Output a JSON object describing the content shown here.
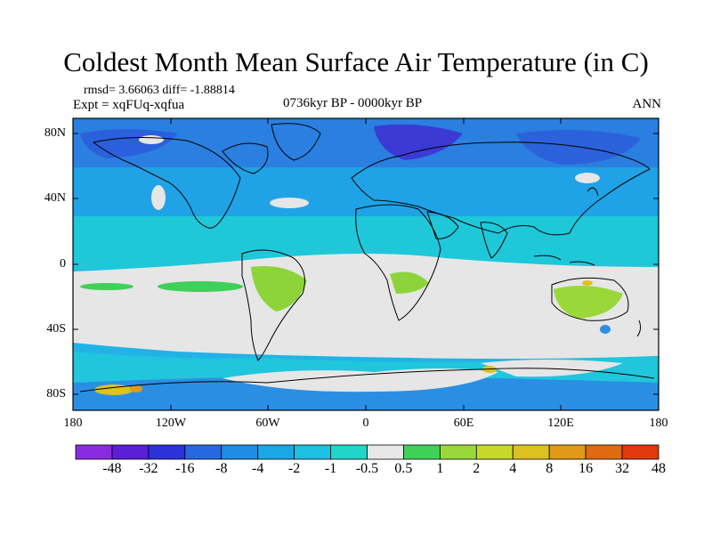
{
  "title": "Coldest Month Mean Surface Air Temperature (in C)",
  "stats": "rmsd= 3.66063 diff= -1.88814",
  "experiment": "Expt = xqFUq-xqfua",
  "period": "0736kyr BP - 0000kyr BP",
  "season": "ANN",
  "y_axis_labels": [
    "80N",
    "40N",
    "0",
    "40S",
    "80S"
  ],
  "x_axis_labels": [
    "180",
    "120W",
    "60W",
    "0",
    "60E",
    "120E",
    "180"
  ],
  "colorbar": {
    "labels": [
      "-48",
      "-32",
      "-16",
      "-8",
      "-4",
      "-2",
      "-1",
      "-0.5",
      "0.5",
      "1",
      "2",
      "4",
      "8",
      "16",
      "32",
      "48"
    ],
    "colors": [
      "#8a2be2",
      "#5a1fd6",
      "#2a32d8",
      "#2768e0",
      "#1f8de6",
      "#1aa7e8",
      "#1cc0e0",
      "#1fd6c8",
      "#e8e8e8",
      "#3fd05a",
      "#9ad83a",
      "#c8d82a",
      "#dcc21e",
      "#e09a18",
      "#e06a12",
      "#e03a0e"
    ]
  }
}
